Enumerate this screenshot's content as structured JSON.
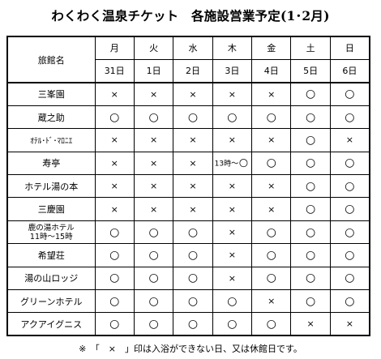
{
  "title": "わくわく温泉チケット　各施設営業予定(1･2月)",
  "header": {
    "hotel_label": "旅館名",
    "days": [
      {
        "weekday": "月",
        "date": "31日"
      },
      {
        "weekday": "火",
        "date": "1日"
      },
      {
        "weekday": "水",
        "date": "2日"
      },
      {
        "weekday": "木",
        "date": "3日"
      },
      {
        "weekday": "金",
        "date": "4日"
      },
      {
        "weekday": "土",
        "date": "5日"
      },
      {
        "weekday": "日",
        "date": "6日"
      }
    ]
  },
  "rows": [
    {
      "name": "三峯園",
      "cells": [
        "×",
        "×",
        "×",
        "×",
        "×",
        "○",
        "○"
      ]
    },
    {
      "name": "蔵之助",
      "cells": [
        "○",
        "○",
        "○",
        "○",
        "○",
        "○",
        "○"
      ]
    },
    {
      "name": "ｵﾃﾙ･ﾄﾞ･ﾏﾛﾆｴ",
      "cells": [
        "×",
        "×",
        "×",
        "×",
        "×",
        "○",
        "×"
      ]
    },
    {
      "name": "寿亭",
      "cells": [
        "×",
        "×",
        "×",
        "13時～ ○",
        "○",
        "○",
        "○"
      ]
    },
    {
      "name": "ホテル湯の本",
      "cells": [
        "×",
        "×",
        "×",
        "×",
        "×",
        "○",
        "○"
      ]
    },
    {
      "name": "三慶園",
      "cells": [
        "×",
        "×",
        "×",
        "×",
        "×",
        "○",
        "○"
      ]
    },
    {
      "name": "鹿の湯ホテル\n11時～15時",
      "cells": [
        "○",
        "○",
        "○",
        "×",
        "○",
        "○",
        "○"
      ]
    },
    {
      "name": "希望荘",
      "cells": [
        "○",
        "○",
        "○",
        "×",
        "○",
        "○",
        "○"
      ]
    },
    {
      "name": "湯の山ロッジ",
      "cells": [
        "○",
        "○",
        "○",
        "×",
        "○",
        "○",
        "○"
      ]
    },
    {
      "name": "グリーンホテル",
      "cells": [
        "○",
        "○",
        "○",
        "○",
        "×",
        "○",
        "○"
      ]
    },
    {
      "name": "アクアイグニス",
      "cells": [
        "○",
        "○",
        "○",
        "○",
        "○",
        "×",
        "×"
      ]
    }
  ],
  "footnote": "※　「　×　」印は入浴ができない日、又は休館日です。"
}
